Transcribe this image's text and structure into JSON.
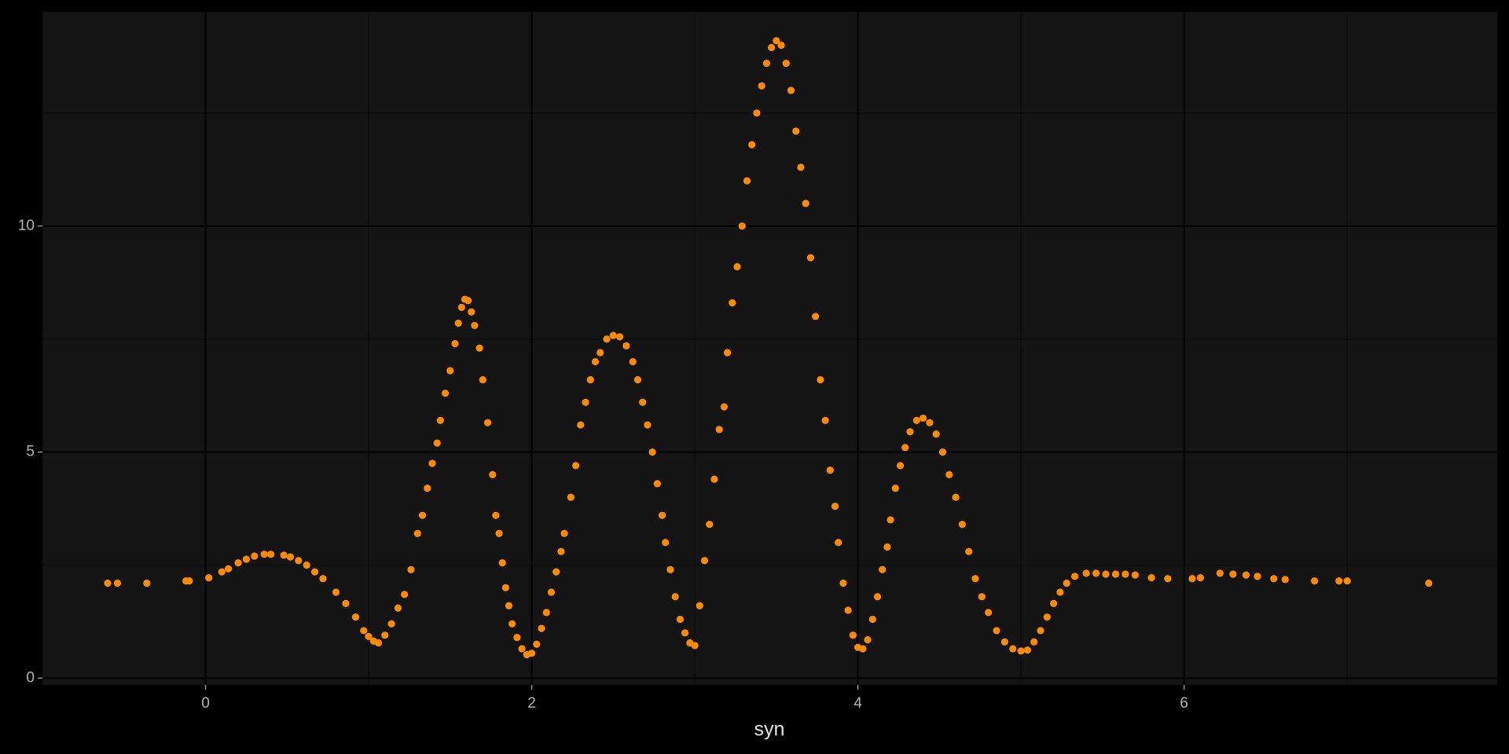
{
  "chart_data": {
    "type": "scatter",
    "x_label": "syn",
    "color": "#ff8c00",
    "grid": true,
    "xlim": [
      -1.0,
      7.92
    ],
    "ylim": [
      -0.15,
      14.74
    ],
    "xticks": [
      0,
      2,
      4,
      6
    ],
    "yticks": [
      0,
      5,
      10
    ],
    "x": [
      -0.6,
      -0.54,
      -0.36,
      -0.12,
      -0.1,
      0.02,
      0.1,
      0.14,
      0.2,
      0.25,
      0.3,
      0.36,
      0.4,
      0.48,
      0.52,
      0.57,
      0.62,
      0.67,
      0.72,
      0.8,
      0.86,
      0.92,
      0.97,
      1.0,
      1.03,
      1.06,
      1.1,
      1.14,
      1.18,
      1.22,
      1.26,
      1.3,
      1.33,
      1.36,
      1.39,
      1.42,
      1.44,
      1.47,
      1.5,
      1.53,
      1.55,
      1.57,
      1.59,
      1.61,
      1.63,
      1.65,
      1.68,
      1.7,
      1.73,
      1.76,
      1.78,
      1.8,
      1.82,
      1.84,
      1.86,
      1.88,
      1.91,
      1.94,
      1.97,
      2.0,
      2.03,
      2.06,
      2.09,
      2.12,
      2.15,
      2.18,
      2.2,
      2.24,
      2.27,
      2.3,
      2.33,
      2.36,
      2.39,
      2.42,
      2.46,
      2.5,
      2.54,
      2.58,
      2.62,
      2.65,
      2.68,
      2.71,
      2.74,
      2.77,
      2.8,
      2.82,
      2.85,
      2.88,
      2.91,
      2.94,
      2.97,
      3.0,
      3.03,
      3.06,
      3.09,
      3.12,
      3.15,
      3.18,
      3.2,
      3.23,
      3.26,
      3.29,
      3.32,
      3.35,
      3.38,
      3.41,
      3.44,
      3.47,
      3.5,
      3.53,
      3.56,
      3.59,
      3.62,
      3.65,
      3.68,
      3.71,
      3.74,
      3.77,
      3.8,
      3.83,
      3.86,
      3.88,
      3.91,
      3.94,
      3.97,
      4.0,
      4.03,
      4.06,
      4.09,
      4.12,
      4.15,
      4.18,
      4.2,
      4.23,
      4.26,
      4.29,
      4.32,
      4.36,
      4.4,
      4.44,
      4.48,
      4.52,
      4.56,
      4.6,
      4.64,
      4.68,
      4.72,
      4.76,
      4.8,
      4.85,
      4.9,
      4.95,
      5.0,
      5.04,
      5.08,
      5.12,
      5.16,
      5.2,
      5.24,
      5.28,
      5.33,
      5.4,
      5.46,
      5.52,
      5.58,
      5.64,
      5.7,
      5.8,
      5.9,
      6.05,
      6.1,
      6.22,
      6.3,
      6.38,
      6.45,
      6.55,
      6.62,
      6.8,
      6.95,
      7.0,
      7.5
    ],
    "values": [
      2.1,
      2.1,
      2.1,
      2.15,
      2.15,
      2.22,
      2.35,
      2.42,
      2.55,
      2.63,
      2.7,
      2.74,
      2.74,
      2.72,
      2.68,
      2.6,
      2.5,
      2.35,
      2.2,
      1.9,
      1.65,
      1.35,
      1.05,
      0.92,
      0.82,
      0.78,
      0.95,
      1.2,
      1.55,
      1.85,
      2.4,
      3.2,
      3.6,
      4.2,
      4.75,
      5.2,
      5.7,
      6.3,
      6.8,
      7.4,
      7.85,
      8.2,
      8.38,
      8.35,
      8.1,
      7.8,
      7.3,
      6.6,
      5.65,
      4.5,
      3.6,
      3.2,
      2.55,
      2.0,
      1.6,
      1.2,
      0.9,
      0.65,
      0.52,
      0.55,
      0.75,
      1.1,
      1.45,
      1.9,
      2.35,
      2.8,
      3.2,
      4.0,
      4.7,
      5.6,
      6.1,
      6.6,
      7.0,
      7.2,
      7.5,
      7.58,
      7.55,
      7.35,
      7.0,
      6.6,
      6.1,
      5.6,
      5.0,
      4.3,
      3.6,
      3.0,
      2.4,
      1.8,
      1.3,
      1.0,
      0.78,
      0.72,
      1.6,
      2.6,
      3.4,
      4.4,
      5.5,
      6.0,
      7.2,
      8.3,
      9.1,
      10.0,
      11.0,
      11.8,
      12.5,
      13.1,
      13.6,
      13.95,
      14.1,
      14.0,
      13.6,
      13.0,
      12.1,
      11.3,
      10.5,
      9.3,
      8.0,
      6.6,
      5.7,
      4.6,
      3.8,
      3.0,
      2.1,
      1.5,
      0.95,
      0.68,
      0.65,
      0.85,
      1.3,
      1.8,
      2.4,
      2.9,
      3.5,
      4.2,
      4.7,
      5.1,
      5.45,
      5.7,
      5.75,
      5.65,
      5.4,
      5.0,
      4.5,
      4.0,
      3.4,
      2.8,
      2.2,
      1.8,
      1.45,
      1.05,
      0.8,
      0.65,
      0.6,
      0.62,
      0.8,
      1.05,
      1.35,
      1.65,
      1.9,
      2.1,
      2.25,
      2.32,
      2.32,
      2.3,
      2.3,
      2.3,
      2.28,
      2.22,
      2.2,
      2.2,
      2.22,
      2.32,
      2.3,
      2.28,
      2.25,
      2.2,
      2.18,
      2.15,
      2.15,
      2.15,
      2.1
    ]
  }
}
